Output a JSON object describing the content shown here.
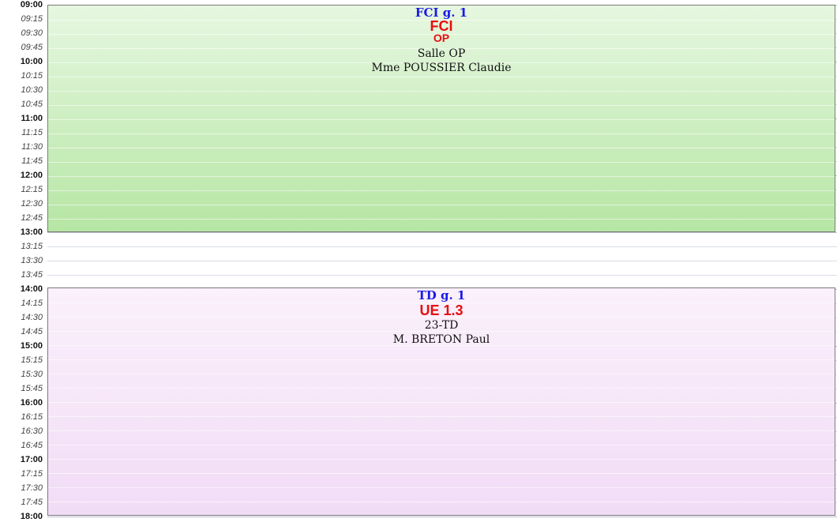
{
  "timeline": {
    "slots": [
      {
        "label": "09:00",
        "hour": true
      },
      {
        "label": "09:15",
        "hour": false
      },
      {
        "label": "09:30",
        "hour": false
      },
      {
        "label": "09:45",
        "hour": false
      },
      {
        "label": "10:00",
        "hour": true
      },
      {
        "label": "10:15",
        "hour": false
      },
      {
        "label": "10:30",
        "hour": false
      },
      {
        "label": "10:45",
        "hour": false
      },
      {
        "label": "11:00",
        "hour": true
      },
      {
        "label": "11:15",
        "hour": false
      },
      {
        "label": "11:30",
        "hour": false
      },
      {
        "label": "11:45",
        "hour": false
      },
      {
        "label": "12:00",
        "hour": true
      },
      {
        "label": "12:15",
        "hour": false
      },
      {
        "label": "12:30",
        "hour": false
      },
      {
        "label": "12:45",
        "hour": false
      },
      {
        "label": "13:00",
        "hour": true
      },
      {
        "label": "13:15",
        "hour": false
      },
      {
        "label": "13:30",
        "hour": false
      },
      {
        "label": "13:45",
        "hour": false
      },
      {
        "label": "14:00",
        "hour": true
      },
      {
        "label": "14:15",
        "hour": false
      },
      {
        "label": "14:30",
        "hour": false
      },
      {
        "label": "14:45",
        "hour": false
      },
      {
        "label": "15:00",
        "hour": true
      },
      {
        "label": "15:15",
        "hour": false
      },
      {
        "label": "15:30",
        "hour": false
      },
      {
        "label": "15:45",
        "hour": false
      },
      {
        "label": "16:00",
        "hour": true
      },
      {
        "label": "16:15",
        "hour": false
      },
      {
        "label": "16:30",
        "hour": false
      },
      {
        "label": "16:45",
        "hour": false
      },
      {
        "label": "17:00",
        "hour": true
      },
      {
        "label": "17:15",
        "hour": false
      },
      {
        "label": "17:30",
        "hour": false
      },
      {
        "label": "17:45",
        "hour": false
      },
      {
        "label": "18:00",
        "hour": true
      }
    ]
  },
  "events": [
    {
      "start": "09:00",
      "end": "13:00",
      "group": "FCI g. 1",
      "course_line1": "FCI",
      "course_line2": "OP",
      "room": "Salle OP",
      "teacher": "Mme POUSSIER Claudie",
      "color_top": "#e6f7e0",
      "color_bottom": "#b6e6a4"
    },
    {
      "start": "14:00",
      "end": "18:00",
      "group": "TD g. 1",
      "course_line1": "UE 1.3",
      "room": "23-TD",
      "teacher": "M. BRETON Paul",
      "color_top": "#fbf0fb",
      "color_bottom": "#f1dcf6"
    }
  ]
}
